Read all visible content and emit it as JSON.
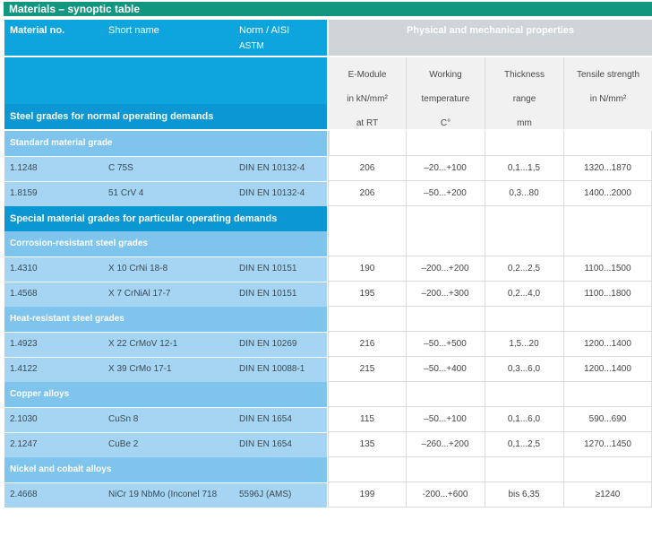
{
  "title": "Materials – synoptic table",
  "header": {
    "material_no": "Material no.",
    "short_name": "Short name",
    "norm_line1": "Norm / AISI",
    "norm_line2": "ASTM",
    "physical": "Physical and mechanical properties",
    "emodule": [
      "E-Module",
      "in kN/mm²",
      "at RT"
    ],
    "working": [
      "Working",
      "temperature",
      "C°"
    ],
    "thickness": [
      "Thickness",
      "range",
      "mm"
    ],
    "tensile": [
      "Tensile strength",
      "in N/mm²"
    ],
    "steel_normal": "Steel grades for normal operating demands"
  },
  "sections": [
    {
      "heading": "Standard material grade",
      "rows": [
        {
          "no": "1.1248",
          "name": "C 75S",
          "norm": "DIN EN 10132-4",
          "e": "206",
          "temp": "–20...+100",
          "thick": "0,1...1,5",
          "tensile": "1320...1870"
        },
        {
          "no": "1.8159",
          "name": "51 CrV 4",
          "norm": "DIN EN 10132-4",
          "e": "206",
          "temp": "–50...+200",
          "thick": "0,3...80",
          "tensile": "1400...2000"
        }
      ]
    },
    {
      "major": "Special material grades for particular operating demands"
    },
    {
      "heading": "Corrosion-resistant steel grades",
      "rows": [
        {
          "no": "1.4310",
          "name": "X 10 CrNi 18-8",
          "norm": "DIN EN 10151",
          "e": "190",
          "temp": "–200...+200",
          "thick": "0,2...2,5",
          "tensile": "1100...1500"
        },
        {
          "no": "1.4568",
          "name": "X 7 CrNiAl 17-7",
          "norm": "DIN EN 10151",
          "e": "195",
          "temp": "–200...+300",
          "thick": "0,2...4,0",
          "tensile": "1100...1800"
        }
      ]
    },
    {
      "heading": "Heat-resistant steel grades",
      "rows": [
        {
          "no": "1.4923",
          "name": "X 22 CrMoV 12-1",
          "norm": "DIN EN 10269",
          "e": "216",
          "temp": "–50...+500",
          "thick": "1,5...20",
          "tensile": "1200...1400"
        },
        {
          "no": "1.4122",
          "name": "X 39 CrMo 17-1",
          "norm": "DIN EN 10088-1",
          "e": "215",
          "temp": "–50...+400",
          "thick": "0,3...6,0",
          "tensile": "1200...1400"
        }
      ]
    },
    {
      "heading": "Copper alloys",
      "rows": [
        {
          "no": "2.1030",
          "name": "CuSn 8",
          "norm": "DIN EN 1654",
          "e": "115",
          "temp": "–50...+100",
          "thick": "0,1...6,0",
          "tensile": "590...690"
        },
        {
          "no": "2.1247",
          "name": "CuBe 2",
          "norm": "DIN EN 1654",
          "e": "135",
          "temp": "–260...+200",
          "thick": "0,1...2,5",
          "tensile": "1270...1450"
        }
      ]
    },
    {
      "heading": "Nickel and cobalt alloys",
      "rows": [
        {
          "no": "2.4668",
          "name": "NiCr 19 NbMo (Inconel 718",
          "norm": "5596J (AMS)",
          "e": "199",
          "temp": "-200...+600",
          "thick": "bis 6,35",
          "tensile": "≥1240"
        }
      ]
    }
  ]
}
